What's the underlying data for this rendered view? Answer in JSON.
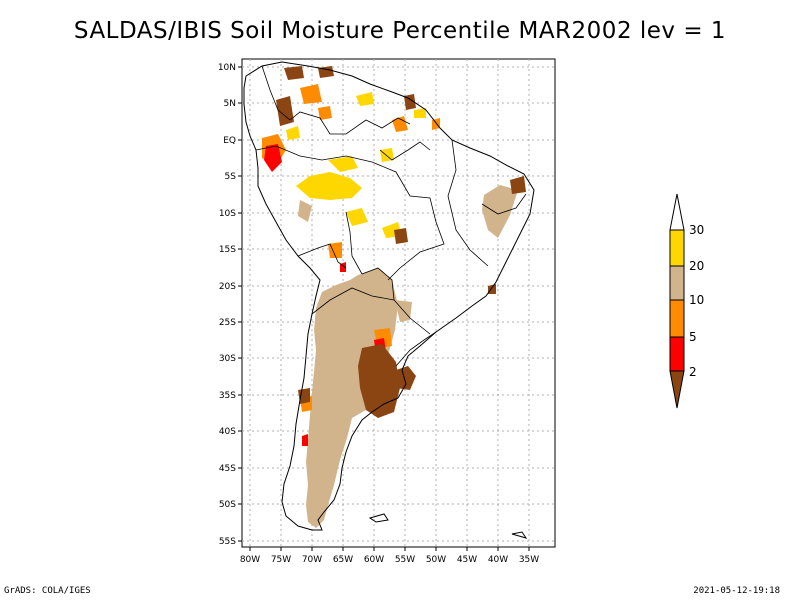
{
  "title": "SALDAS/IBIS Soil Moisture Percentile MAR2002 lev = 1",
  "footer_left": "GrADS: COLA/IGES",
  "footer_right": "2021-05-12-19:18",
  "lat_labels": [
    "10N",
    "5N",
    "EQ",
    "5S",
    "10S",
    "15S",
    "20S",
    "25S",
    "30S",
    "35S",
    "40S",
    "45S",
    "50S",
    "55S"
  ],
  "lon_labels": [
    "80W",
    "75W",
    "70W",
    "65W",
    "60W",
    "55W",
    "50W",
    "45W",
    "40W",
    "35W"
  ],
  "colorbar": {
    "labels": [
      "2",
      "5",
      "10",
      "20",
      "30"
    ],
    "colors": [
      "#8b4513",
      "#ff0000",
      "#ff8c00",
      "#d2b48c",
      "#ffd700",
      "#ffffff"
    ]
  },
  "colors": {
    "brown": "#8b4513",
    "red": "#ff0000",
    "orange": "#ff8c00",
    "tan": "#d2b48c",
    "yellow": "#ffd700"
  }
}
